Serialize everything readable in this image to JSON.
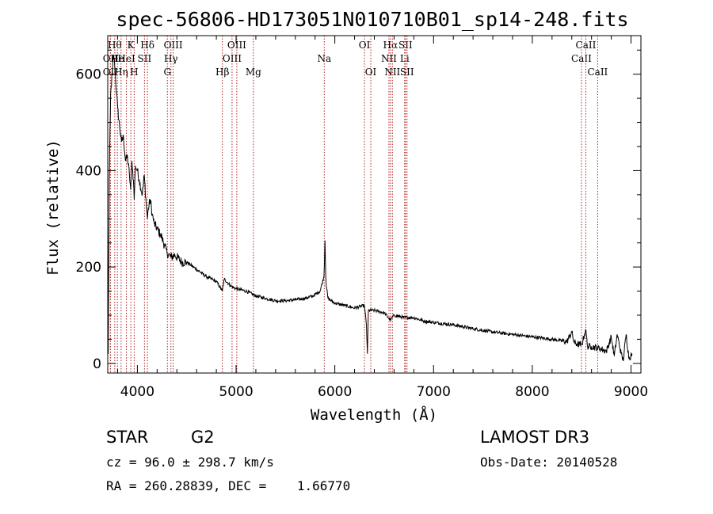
{
  "chart_data": {
    "type": "line",
    "title": "spec-56806-HD173051N010710B01_sp14-248.fits",
    "xlabel": "Wavelength (Å)",
    "ylabel": "Flux (relative)",
    "xlim": [
      3700,
      9100
    ],
    "ylim": [
      -20,
      680
    ],
    "x_ticks": [
      4000,
      5000,
      6000,
      7000,
      8000,
      9000
    ],
    "y_ticks": [
      0,
      200,
      400,
      600
    ],
    "series": [
      {
        "name": "spectrum",
        "x": [
          3700,
          3705,
          3715,
          3730,
          3745,
          3760,
          3770,
          3790,
          3800,
          3820,
          3840,
          3860,
          3880,
          3900,
          3920,
          3933,
          3945,
          3960,
          3968,
          3980,
          4000,
          4020,
          4050,
          4070,
          4090,
          4102,
          4110,
          4130,
          4150,
          4170,
          4200,
          4250,
          4300,
          4340,
          4380,
          4450,
          4500,
          4600,
          4700,
          4800,
          4861,
          4880,
          4950,
          5000,
          5100,
          5200,
          5300,
          5400,
          5500,
          5600,
          5700,
          5780,
          5850,
          5890,
          5900,
          5910,
          5930,
          6000,
          6100,
          6200,
          6300,
          6320,
          6330,
          6340,
          6400,
          6500,
          6563,
          6600,
          6700,
          6800,
          6900,
          7000,
          7200,
          7400,
          7600,
          7800,
          8000,
          8200,
          8350,
          8400,
          8420,
          8450,
          8500,
          8540,
          8560,
          8600,
          8660,
          8700,
          8750,
          8800,
          8830,
          8860,
          8900,
          8920,
          8950,
          8980,
          9010
        ],
        "values": [
          300,
          20,
          380,
          560,
          600,
          640,
          620,
          560,
          530,
          490,
          460,
          470,
          420,
          430,
          390,
          360,
          420,
          380,
          340,
          410,
          400,
          380,
          350,
          390,
          330,
          300,
          320,
          340,
          310,
          290,
          280,
          260,
          230,
          220,
          225,
          210,
          210,
          195,
          180,
          170,
          150,
          175,
          160,
          155,
          150,
          140,
          135,
          130,
          130,
          132,
          135,
          140,
          150,
          180,
          255,
          170,
          135,
          125,
          120,
          115,
          120,
          80,
          20,
          110,
          110,
          105,
          90,
          100,
          95,
          95,
          88,
          85,
          80,
          72,
          65,
          60,
          55,
          50,
          45,
          65,
          45,
          40,
          38,
          70,
          35,
          35,
          32,
          30,
          25,
          55,
          15,
          60,
          20,
          5,
          60,
          10,
          20
        ]
      }
    ],
    "line_markers": [
      {
        "wavelength": 3727,
        "row": 2,
        "label": "OII"
      },
      {
        "wavelength": 3727,
        "row": 3,
        "label": "OII"
      },
      {
        "wavelength": 3771,
        "row": 1,
        "label": "Hθ"
      },
      {
        "wavelength": 3798,
        "row": 2,
        "label": "He"
      },
      {
        "wavelength": 3835,
        "row": 3,
        "label": "Hη"
      },
      {
        "wavelength": 3889,
        "row": 2,
        "label": "HeI"
      },
      {
        "wavelength": 3934,
        "row": 1,
        "label": "K"
      },
      {
        "wavelength": 3968,
        "row": 3,
        "label": "H"
      },
      {
        "wavelength": 4072,
        "row": 2,
        "label": "SII"
      },
      {
        "wavelength": 4102,
        "row": 1,
        "label": "Hδ"
      },
      {
        "wavelength": 4304,
        "row": 3,
        "label": "G"
      },
      {
        "wavelength": 4340,
        "row": 2,
        "label": "Hγ"
      },
      {
        "wavelength": 4363,
        "row": 1,
        "label": "OIII"
      },
      {
        "wavelength": 4861,
        "row": 3,
        "label": "Hβ"
      },
      {
        "wavelength": 4959,
        "row": 2,
        "label": "OIII"
      },
      {
        "wavelength": 5007,
        "row": 1,
        "label": "OIII"
      },
      {
        "wavelength": 5175,
        "row": 3,
        "label": "Mg"
      },
      {
        "wavelength": 5893,
        "row": 2,
        "label": "Na"
      },
      {
        "wavelength": 6300,
        "row": 1,
        "label": "OI"
      },
      {
        "wavelength": 6364,
        "row": 3,
        "label": "OI"
      },
      {
        "wavelength": 6548,
        "row": 2,
        "label": "NII"
      },
      {
        "wavelength": 6563,
        "row": 1,
        "label": "Hα"
      },
      {
        "wavelength": 6583,
        "row": 3,
        "label": "NII"
      },
      {
        "wavelength": 6707,
        "row": 2,
        "label": "Li"
      },
      {
        "wavelength": 6716,
        "row": 1,
        "label": "SII"
      },
      {
        "wavelength": 6731,
        "row": 3,
        "label": "SII"
      },
      {
        "wavelength": 8498,
        "row": 2,
        "label": "CaII"
      },
      {
        "wavelength": 8542,
        "row": 1,
        "label": "CaII"
      },
      {
        "wavelength": 8662,
        "row": 3,
        "label": "CaII"
      }
    ]
  },
  "info": {
    "object_class": "STAR",
    "subclass": "G2",
    "survey": "LAMOST DR3",
    "cz_text": "cz = 96.0 ± 298.7 km/s",
    "obs_date_text": "Obs-Date: 20140528",
    "radec_text": "RA = 260.28839, DEC =    1.66770"
  },
  "colors": {
    "spectrum": "#000000",
    "line_marker": "#b22222",
    "axes": "#000000"
  }
}
